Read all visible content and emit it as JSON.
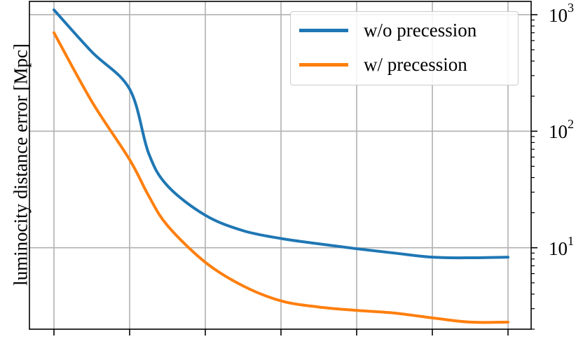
{
  "chart_data": {
    "type": "line",
    "ylabel": "luminocity distance error [Mpc]",
    "yscale": "log",
    "ylim": [
      2.0,
      1300
    ],
    "yaxis_side": "right",
    "yticks": [
      {
        "base": "10",
        "exp": "1",
        "value": 10
      },
      {
        "base": "10",
        "exp": "2",
        "value": 100
      },
      {
        "base": "10",
        "exp": "3",
        "value": 1000
      }
    ],
    "x_tick_count": 7,
    "xlim": [
      0,
      6
    ],
    "grid": true,
    "legend_position": "top-right",
    "series": [
      {
        "name": "w/o precession",
        "color": "#1f77b4",
        "x": [
          0,
          0.5,
          1.0,
          1.25,
          1.5,
          2.0,
          2.5,
          3.0,
          3.5,
          4.0,
          4.5,
          5.0,
          5.5,
          6.0
        ],
        "y": [
          1100,
          480,
          230,
          65,
          34,
          19,
          14,
          12,
          10.8,
          9.8,
          9.0,
          8.3,
          8.2,
          8.3
        ]
      },
      {
        "name": "w/ precession",
        "color": "#ff7f0e",
        "x": [
          0,
          0.5,
          1.0,
          1.25,
          1.5,
          2.0,
          2.5,
          3.0,
          3.5,
          4.0,
          4.5,
          5.0,
          5.5,
          6.0
        ],
        "y": [
          700,
          180,
          57,
          28,
          15.5,
          7.5,
          4.7,
          3.5,
          3.1,
          2.9,
          2.75,
          2.5,
          2.3,
          2.3
        ]
      }
    ]
  }
}
